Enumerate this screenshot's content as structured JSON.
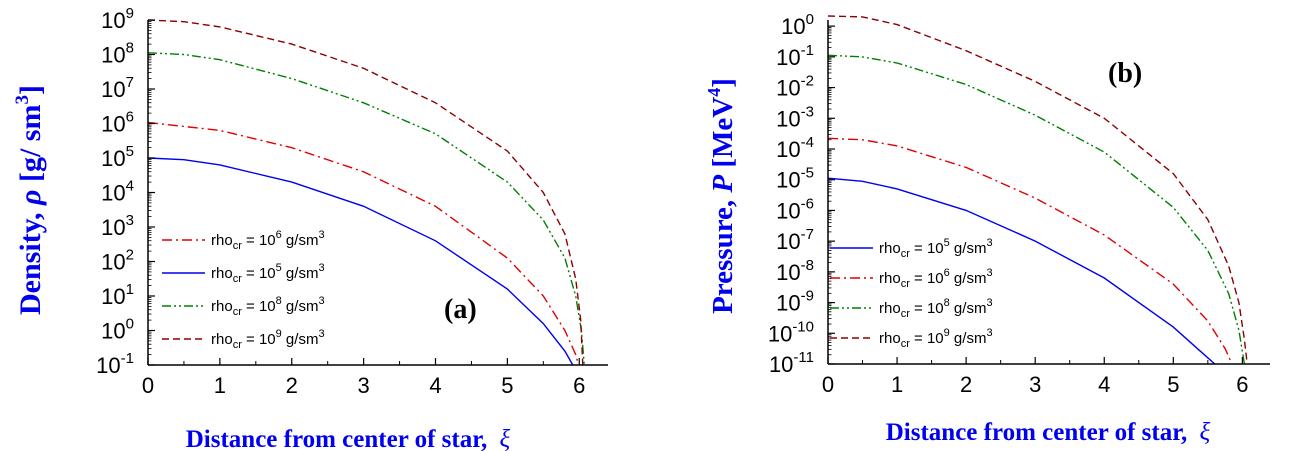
{
  "chart_data": [
    {
      "type": "line",
      "panel_label": "(a)",
      "xlabel": "Distance from center of star, ",
      "xlabel_symbol": "ξ",
      "ylabel": "Density, ",
      "ylabel_symbol": "ρ",
      "ylabel_unit": " [g/ sm",
      "ylabel_unit_sup": "3",
      "ylabel_unit_end": "]",
      "xlim": [
        0,
        6.4
      ],
      "ylim_log10": [
        -1,
        9
      ],
      "yscale": "log",
      "x_ticks": [
        0,
        1,
        2,
        3,
        4,
        5,
        6
      ],
      "y_tick_exponents": [
        -1,
        0,
        1,
        2,
        3,
        4,
        5,
        6,
        7,
        8,
        9
      ],
      "tick_base": "10",
      "legend_position": "bottom-left",
      "legend_prefix": "rho",
      "legend_prefix_sub": "cr",
      "legend_equals": " = 10",
      "legend_unit": " g/sm",
      "legend_unit_sup": "3",
      "series": [
        {
          "name_exp": "6",
          "color": "#e00000",
          "dash": "10,4,2,4",
          "x": [
            0,
            1,
            2,
            3,
            4,
            5,
            5.5,
            5.8,
            5.95,
            5.99
          ],
          "y_log10": [
            6.03,
            5.8,
            5.3,
            4.6,
            3.6,
            2.1,
            1.0,
            0.0,
            -0.7,
            -1.0
          ]
        },
        {
          "name_exp": "5",
          "color": "#0000ee",
          "dash": "",
          "x": [
            0,
            0.5,
            1,
            2,
            3,
            4,
            5,
            5.5,
            5.8,
            5.91
          ],
          "y_log10": [
            5.0,
            4.95,
            4.8,
            4.3,
            3.6,
            2.6,
            1.2,
            0.2,
            -0.6,
            -1.0
          ]
        },
        {
          "name_exp": "8",
          "color": "#008000",
          "dash": "9,3,2,3,2,3",
          "x": [
            0,
            0.5,
            1,
            2,
            3,
            4,
            5,
            5.5,
            5.8,
            5.95,
            6.03,
            6.07
          ],
          "y_log10": [
            8.05,
            8.0,
            7.85,
            7.3,
            6.6,
            5.7,
            4.3,
            3.2,
            2.1,
            1.0,
            0.0,
            -1.0
          ]
        },
        {
          "name_exp": "9",
          "color": "#8b0000",
          "dash": "7,4",
          "x": [
            0,
            0.5,
            1,
            2,
            3,
            4,
            5,
            5.5,
            5.8,
            5.95,
            6.02,
            6.05
          ],
          "y_log10": [
            9.0,
            8.95,
            8.8,
            8.3,
            7.6,
            6.6,
            5.2,
            4.0,
            2.8,
            1.5,
            0.3,
            -1.0
          ]
        }
      ]
    },
    {
      "type": "line",
      "panel_label": "(b)",
      "xlabel": "Distance from center of star, ",
      "xlabel_symbol": "ξ",
      "ylabel": "Pressure, ",
      "ylabel_symbol": "P",
      "ylabel_unit": " [MeV",
      "ylabel_unit_sup": "4",
      "ylabel_unit_end": "]",
      "xlim": [
        0,
        6.4
      ],
      "ylim_log10": [
        -11,
        0.2
      ],
      "yscale": "log",
      "x_ticks": [
        0,
        1,
        2,
        3,
        4,
        5,
        6
      ],
      "y_tick_exponents": [
        -11,
        -10,
        -9,
        -8,
        -7,
        -6,
        -5,
        -4,
        -3,
        -2,
        -1,
        0
      ],
      "tick_base": "10",
      "legend_position": "bottom-left",
      "legend_prefix": "rho",
      "legend_prefix_sub": "cr",
      "legend_equals": " = 10",
      "legend_unit": " g/sm",
      "legend_unit_sup": "3",
      "series": [
        {
          "name_exp": "5",
          "color": "#0000ee",
          "dash": "",
          "x": [
            0,
            0.5,
            1,
            2,
            3,
            4,
            5,
            5.4,
            5.6
          ],
          "y_log10": [
            -4.95,
            -5.05,
            -5.3,
            -6.0,
            -7.0,
            -8.2,
            -9.8,
            -10.6,
            -11.0
          ]
        },
        {
          "name_exp": "6",
          "color": "#e00000",
          "dash": "10,4,2,4",
          "x": [
            0,
            0.5,
            1,
            2,
            3,
            4,
            5,
            5.5,
            5.75,
            5.85
          ],
          "y_log10": [
            -3.65,
            -3.7,
            -3.9,
            -4.6,
            -5.6,
            -6.8,
            -8.4,
            -9.6,
            -10.5,
            -11.0
          ]
        },
        {
          "name_exp": "8",
          "color": "#008000",
          "dash": "9,3,2,3,2,3",
          "x": [
            0,
            0.5,
            1,
            2,
            3,
            4,
            5,
            5.5,
            5.8,
            5.95,
            6.03
          ],
          "y_log10": [
            -0.95,
            -1.0,
            -1.2,
            -1.9,
            -2.9,
            -4.1,
            -5.9,
            -7.3,
            -8.7,
            -9.9,
            -11.0
          ]
        },
        {
          "name_exp": "9",
          "color": "#8b0000",
          "dash": "7,4",
          "x": [
            0,
            0.5,
            1,
            2,
            3,
            4,
            5,
            5.5,
            5.8,
            5.95,
            6.03,
            6.07
          ],
          "y_log10": [
            0.33,
            0.3,
            0.05,
            -0.8,
            -1.8,
            -3.0,
            -4.8,
            -6.3,
            -7.8,
            -9.0,
            -10.2,
            -11.0
          ]
        }
      ]
    }
  ]
}
